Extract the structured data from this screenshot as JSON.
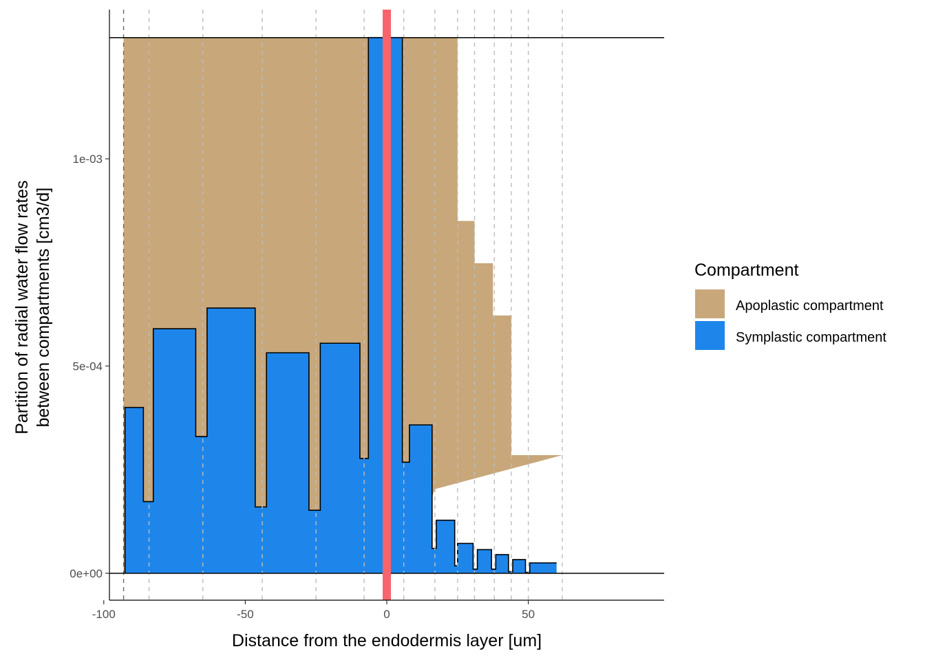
{
  "chart_data": {
    "type": "area",
    "title": "",
    "xlabel": "Distance from the endodermis layer [um]",
    "ylabel_lines": [
      "Partition of radial water flow rates",
      "between compartments [cm3/d]"
    ],
    "xlim": [
      -98,
      98
    ],
    "ylim": [
      -6.5e-05,
      0.00136
    ],
    "x_ticks": [
      -100,
      -50,
      0,
      50
    ],
    "x_tick_labels": [
      "-100",
      "-50",
      "0",
      "50"
    ],
    "y_ticks": [
      0,
      0.0005,
      0.001
    ],
    "y_tick_labels": [
      "0e+00",
      "5e-04",
      "1e-03"
    ],
    "hlines": [
      0,
      0.0012925
    ],
    "vlines_dashed": [
      -93,
      -84,
      -65,
      -44,
      -25,
      -8,
      6,
      17,
      25,
      31,
      38,
      44,
      50,
      62
    ],
    "endodermis_x": 0,
    "endodermis_color": "#F8646B",
    "legend": {
      "title": "Compartment",
      "position": "right",
      "items": [
        {
          "label": "Apoplastic compartment",
          "color": "#C8A77A"
        },
        {
          "label": "Symplastic compartment",
          "color": "#1E86EB"
        }
      ]
    },
    "series": [
      {
        "name": "Apoplastic compartment",
        "color": "#C8A77A",
        "upper_x": [
          -93,
          25,
          25,
          31,
          31,
          37.5,
          37.5,
          44,
          44,
          62
        ],
        "upper_y": [
          0.0012925,
          0.0012925,
          0.00085,
          0.00085,
          0.000748,
          0.000748,
          0.000622,
          0.000622,
          0.000285,
          0.000285
        ],
        "lower_x": [
          -93,
          6,
          17,
          62
        ],
        "lower_y": [
          0,
          0,
          0.000203,
          0.000285
        ]
      },
      {
        "name": "Symplastic compartment",
        "color": "#1E86EB",
        "x": [
          -92.5,
          -92.5,
          -86,
          -86,
          -82.5,
          -82.5,
          -67.5,
          -67.5,
          -63.5,
          -63.5,
          -46.5,
          -46.5,
          -42.5,
          -42.5,
          -27.5,
          -27.5,
          -23.5,
          -23.5,
          -9.5,
          -9.5,
          -6.5,
          -6.5,
          5.5,
          5.5,
          8,
          8,
          16,
          16,
          17.5,
          17.5,
          24,
          24,
          25,
          25,
          30.5,
          30.5,
          32,
          32,
          37,
          37,
          38.5,
          38.5,
          43,
          43,
          44.5,
          44.5,
          49,
          49,
          50.5,
          50.5,
          60
        ],
        "y": [
          0,
          0.0004,
          0.0004,
          0.000173,
          0.000173,
          0.00059,
          0.00059,
          0.00033,
          0.00033,
          0.00064,
          0.00064,
          0.00016,
          0.00016,
          0.000532,
          0.000532,
          0.000152,
          0.000152,
          0.000555,
          0.000555,
          0.000277,
          0.000277,
          0.0012925,
          0.0012925,
          0.000268,
          0.000268,
          0.000358,
          0.000358,
          6e-05,
          6e-05,
          0.000128,
          0.000128,
          1.8e-05,
          1.8e-05,
          7.2e-05,
          7.2e-05,
          1e-05,
          1e-05,
          5.7e-05,
          5.7e-05,
          1e-05,
          1e-05,
          4.5e-05,
          4.5e-05,
          4e-06,
          4e-06,
          3.3e-05,
          3.3e-05,
          2e-06,
          2e-06,
          2.5e-05,
          2.5e-05
        ]
      }
    ]
  }
}
